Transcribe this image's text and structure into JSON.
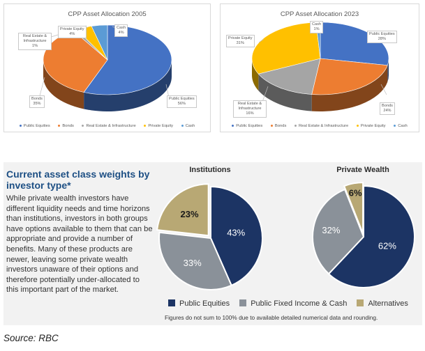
{
  "source": "Source: RBC",
  "chart_data": [
    {
      "type": "pie",
      "title": "CPP Asset Allocation 2005",
      "style": "3d",
      "categories": [
        "Public Equities",
        "Bonds",
        "Real Estate & Infrastructure",
        "Private Equity",
        "Cash"
      ],
      "values": [
        56,
        35,
        1,
        4,
        4
      ],
      "labels": [
        {
          "name": "Public Equities",
          "pct": "56%"
        },
        {
          "name": "Bonds",
          "pct": "35%"
        },
        {
          "name": "Real Estate & Infrastructure",
          "pct": "1%"
        },
        {
          "name": "Private Equity",
          "pct": "4%"
        },
        {
          "name": "Cash",
          "pct": "4%"
        }
      ],
      "colors": [
        "#4472c4",
        "#ed7d31",
        "#a5a5a5",
        "#ffc000",
        "#5b9bd5"
      ],
      "legend": [
        "Public Equities",
        "Bonds",
        "Real Estate & Infrastructure",
        "Private Equity",
        "Cash"
      ],
      "legend_position": "bottom"
    },
    {
      "type": "pie",
      "title": "CPP Asset Allocation 2023",
      "style": "3d",
      "categories": [
        "Public Equities",
        "Bonds",
        "Real Estate & Infrastructure",
        "Private Equity",
        "Cash"
      ],
      "values": [
        28,
        24,
        16,
        31,
        1
      ],
      "labels": [
        {
          "name": "Public Equities",
          "pct": "28%"
        },
        {
          "name": "Bonds",
          "pct": "24%"
        },
        {
          "name": "Real Estate & Infrastructure",
          "pct": "16%"
        },
        {
          "name": "Private Equity",
          "pct": "31%"
        },
        {
          "name": "Cash",
          "pct": "1%"
        }
      ],
      "colors": [
        "#4472c4",
        "#ed7d31",
        "#a5a5a5",
        "#ffc000",
        "#5b9bd5"
      ],
      "legend": [
        "Public Equities",
        "Bonds",
        "Real Estate & Infrastructure",
        "Private Equity",
        "Cash"
      ],
      "legend_position": "bottom"
    },
    {
      "type": "pie",
      "title": "Institutions",
      "categories": [
        "Public Equities",
        "Public Fixed Income & Cash",
        "Alternatives"
      ],
      "values": [
        43,
        33,
        23
      ],
      "labels": [
        "43%",
        "33%",
        "23%"
      ],
      "colors": [
        "#1c3464",
        "#8a9199",
        "#b8a874"
      ],
      "exploded": [
        "Alternatives"
      ]
    },
    {
      "type": "pie",
      "title": "Private Wealth",
      "categories": [
        "Public Equities",
        "Public Fixed Income & Cash",
        "Alternatives"
      ],
      "values": [
        62,
        32,
        6
      ],
      "labels": [
        "62%",
        "32%",
        "6%"
      ],
      "colors": [
        "#1c3464",
        "#8a9199",
        "#b8a874"
      ],
      "exploded": [
        "Alternatives"
      ]
    }
  ],
  "bottom_panel": {
    "heading": "Current asset class weights by investor type*",
    "body": "While private wealth investors have different liquidity needs and time horizons than institutions, investors in both groups have options available to them that can be appropriate and provide a number of benefits. Many of these products are newer, leaving some private wealth investors unaware of their options and therefore potentially under-allocated to this important part of the market.",
    "legend": [
      {
        "label": "Public Equities",
        "color": "#1c3464"
      },
      {
        "label": "Public Fixed Income & Cash",
        "color": "#8a9199"
      },
      {
        "label": "Alternatives",
        "color": "#b8a874"
      }
    ],
    "footnote": "Figures do not sum to 100% due to available detailed numerical data and rounding."
  }
}
